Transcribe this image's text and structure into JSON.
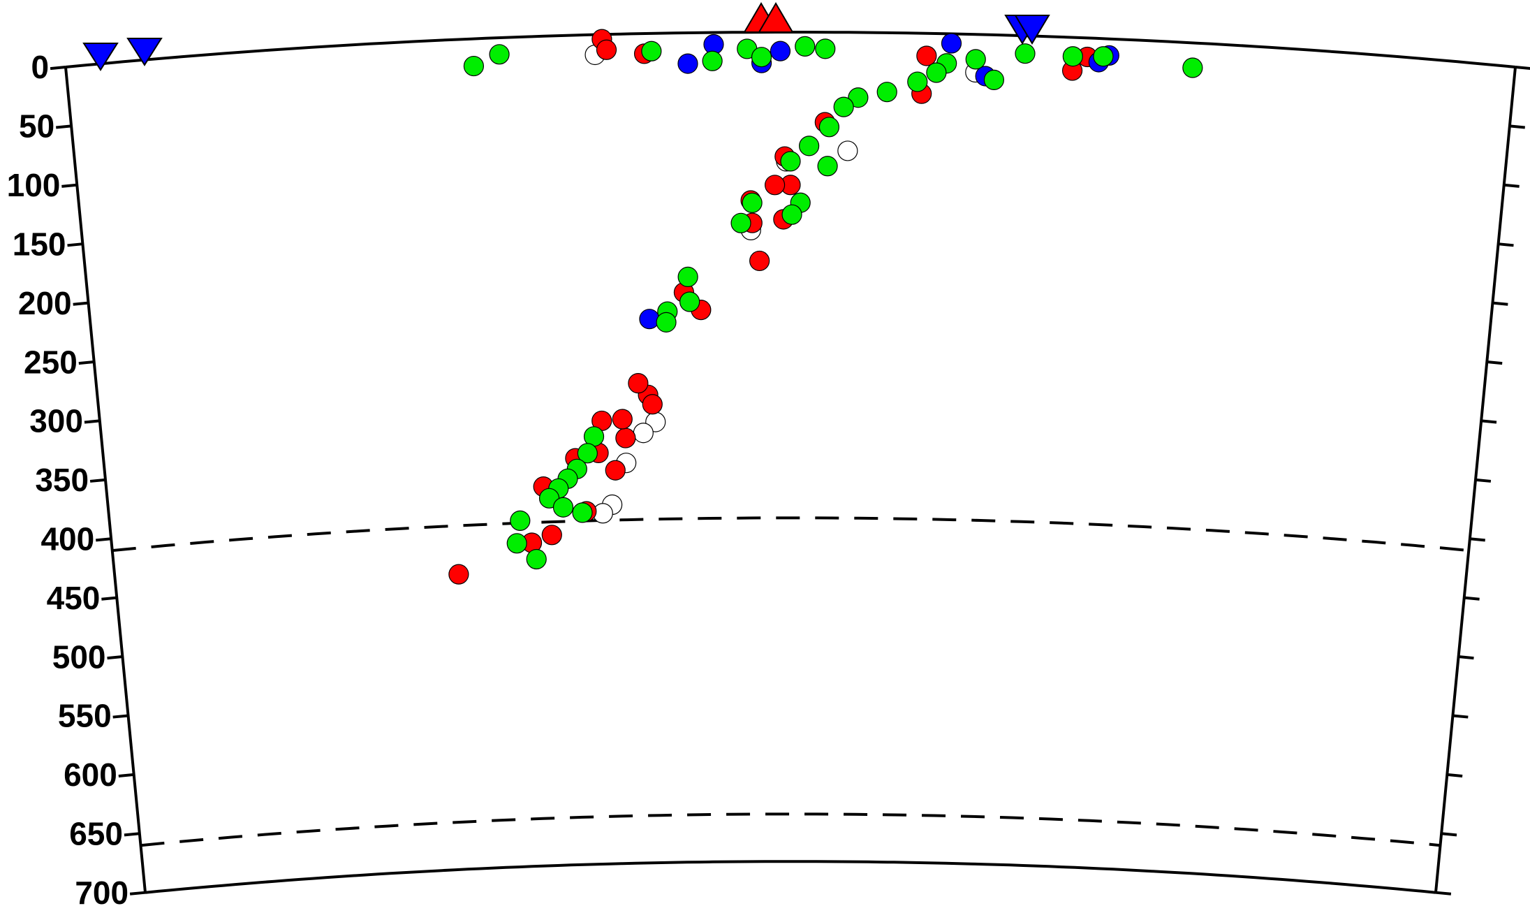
{
  "chart_data": {
    "type": "scatter",
    "xlim": [
      0,
      100
    ],
    "ylim": [
      0,
      700
    ],
    "yticks": [
      0,
      50,
      100,
      150,
      200,
      250,
      300,
      350,
      400,
      450,
      500,
      550,
      600,
      650,
      700
    ],
    "reference_depths": [
      410,
      660
    ],
    "series": [
      {
        "color": "#ffffff",
        "x": [
          36.5,
          40.2,
          39.3,
          38.0,
          36.9,
          36.2,
          47.2,
          54.0,
          49.7,
          62.8
        ],
        "values": [
          17,
          328,
          337,
          362,
          397,
          404,
          167,
          100,
          109,
          32
        ]
      },
      {
        "color": "#ff0000",
        "x": [
          25.4,
          30.9,
          32.4,
          31.9,
          34.3,
          35.0,
          37.2,
          36.0,
          38.0,
          37.8,
          36.3,
          39.7,
          39.0,
          40.0,
          43.6,
          42.4,
          47.8,
          47.3,
          49.5,
          47.2,
          50.0,
          48.9,
          49.6,
          52.4,
          37.0,
          37.3,
          39.9,
          59.4,
          69.5,
          70.5,
          59.1
        ],
        "values": [
          451,
          427,
          421,
          380,
          357,
          402,
          368,
          353,
          341,
          325,
          326,
          305,
          295,
          313,
          234,
          219,
          193,
          161,
          158,
          142,
          129,
          129,
          105,
          76,
          4,
          13,
          17,
          19,
          28,
          16,
          51
        ]
      },
      {
        "color": "#0000ff",
        "x": [
          39.9,
          42.9,
          44.7,
          48.0,
          49.3,
          61.1,
          71.3,
          72.0,
          63.5
        ],
        "values": [
          241,
          26,
          10,
          26,
          16,
          8,
          20,
          14,
          35
        ]
      },
      {
        "color": "#00ee00",
        "x": [
          28.1,
          29.9,
          40.4,
          44.6,
          47.0,
          48.0,
          51.0,
          52.4,
          77.8,
          71.6,
          69.5,
          66.2,
          62.8,
          60.8,
          58.8,
          56.7,
          54.7,
          53.7,
          52.7,
          51.3,
          50.0,
          52.6,
          50.7,
          50.1,
          47.3,
          46.5,
          42.7,
          42.8,
          41.2,
          41.1,
          35.7,
          35.2,
          34.4,
          33.7,
          33.0,
          32.3,
          33.3,
          34.7,
          30.1,
          29.8,
          31.2,
          64.1,
          60.1
        ],
        "values": [
          23,
          14,
          15,
          24,
          14,
          21,
          12,
          14,
          21,
          15,
          16,
          15,
          21,
          25,
          41,
          50,
          55,
          63,
          80,
          96,
          109,
          113,
          144,
          154,
          144,
          161,
          206,
          227,
          235,
          244,
          339,
          353,
          366,
          374,
          382,
          390,
          398,
          403,
          408,
          427,
          441,
          38,
          33
        ]
      }
    ]
  }
}
